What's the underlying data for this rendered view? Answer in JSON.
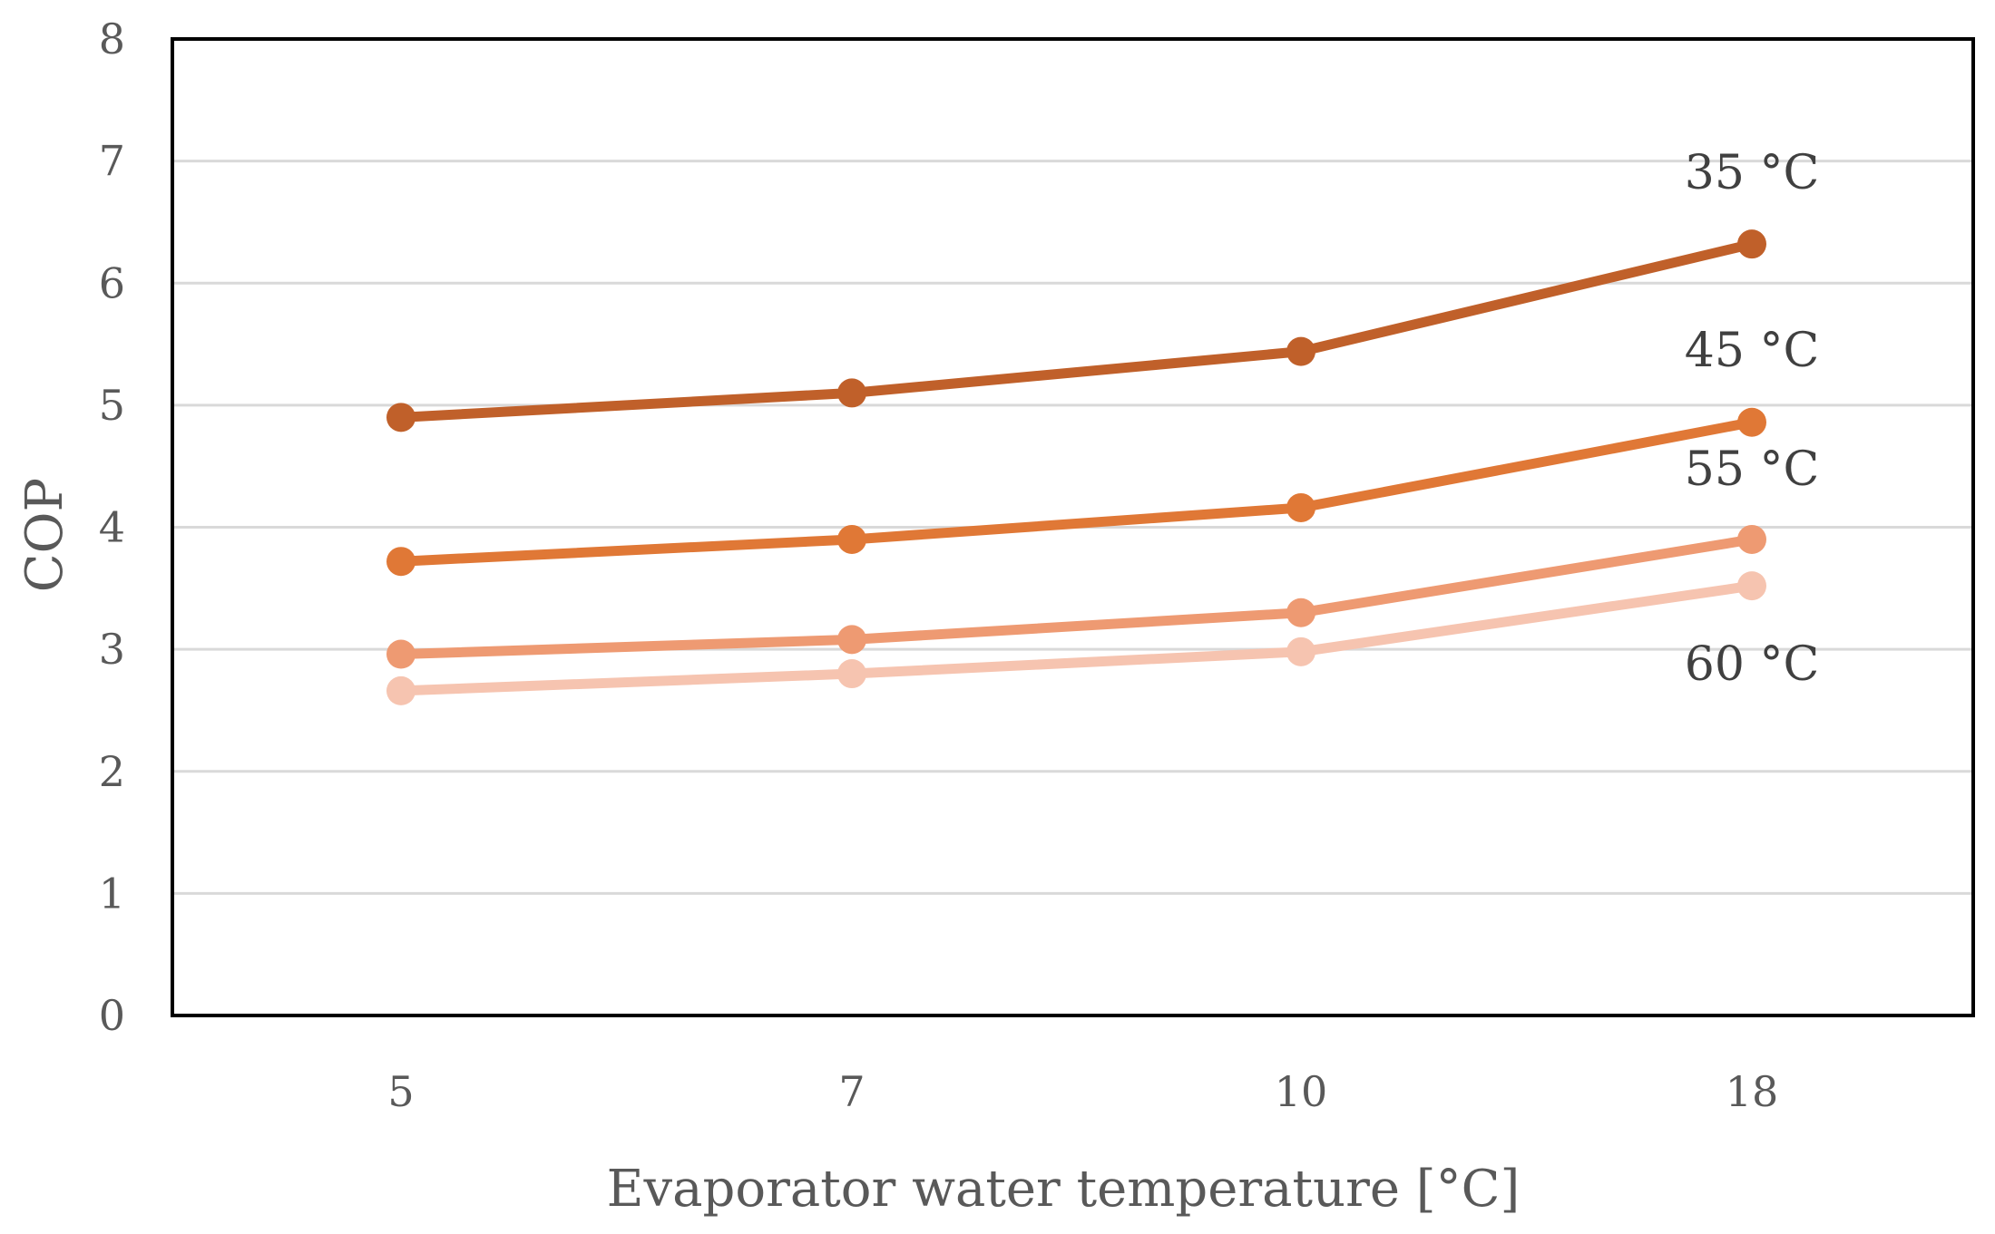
{
  "chart_data": {
    "type": "line",
    "title": "",
    "xlabel": "Evaporator water temperature [°C]",
    "ylabel": "COP",
    "categories": [
      "5",
      "7",
      "10",
      "18"
    ],
    "ylim": [
      0,
      8
    ],
    "yticks": [
      "0",
      "1",
      "2",
      "3",
      "4",
      "5",
      "6",
      "7",
      "8"
    ],
    "grid": true,
    "legend": "none",
    "series": [
      {
        "name": "35 °C",
        "color": "#c0602a",
        "values": [
          4.9,
          5.1,
          5.44,
          6.32
        ]
      },
      {
        "name": "45 °C",
        "color": "#e07836",
        "values": [
          3.72,
          3.9,
          4.16,
          4.86
        ]
      },
      {
        "name": "55 °C",
        "color": "#ee9a72",
        "values": [
          2.96,
          3.08,
          3.3,
          3.9
        ]
      },
      {
        "name": "60 °C",
        "color": "#f6c4b0",
        "values": [
          2.66,
          2.8,
          2.98,
          3.52
        ]
      }
    ]
  }
}
